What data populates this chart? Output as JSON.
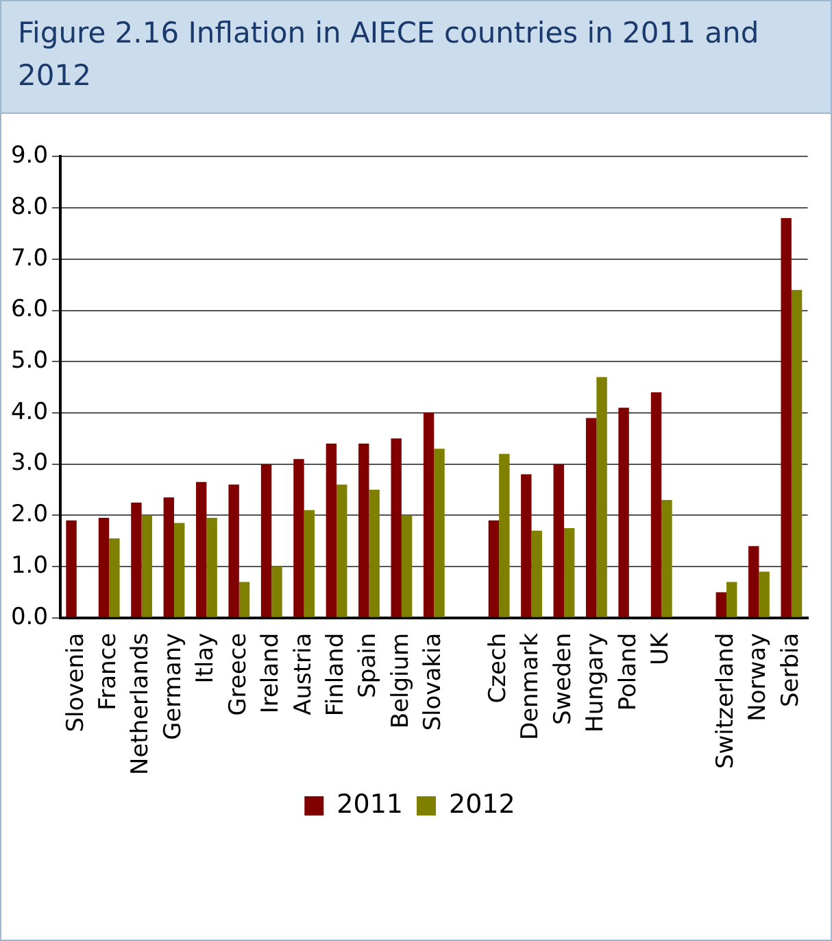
{
  "chart_data": {
    "type": "bar",
    "title": "Figure 2.16 Inflation in AIECE countries in 2011 and 2012",
    "categories": [
      "Slovenia",
      "France",
      "Netherlands",
      "Germany",
      "Itlay",
      "Greece",
      "Ireland",
      "Austria",
      "Finland",
      "Spain",
      "Belgium",
      "Slovakia",
      null,
      "Czech",
      "Denmark",
      "Sweden",
      "Hungary",
      "Poland",
      "UK",
      null,
      "Switzerland",
      "Norway",
      "Serbia"
    ],
    "series": [
      {
        "name": "2011",
        "color": "#800000",
        "values": [
          1.9,
          1.95,
          2.25,
          2.35,
          2.65,
          2.6,
          3.0,
          3.1,
          3.4,
          3.4,
          3.5,
          4.0,
          null,
          1.9,
          2.8,
          3.0,
          3.9,
          4.1,
          4.4,
          null,
          0.5,
          1.4,
          7.8
        ]
      },
      {
        "name": "2012",
        "color": "#808000",
        "values": [
          null,
          1.55,
          2.0,
          1.85,
          1.95,
          0.7,
          1.0,
          2.1,
          2.6,
          2.5,
          2.0,
          3.3,
          null,
          3.2,
          1.7,
          1.75,
          4.7,
          null,
          2.3,
          null,
          0.7,
          0.9,
          6.4
        ]
      }
    ],
    "ylim": [
      0,
      9
    ],
    "yticks": [
      {
        "value": 0,
        "label": "0.0"
      },
      {
        "value": 1,
        "label": "1.0"
      },
      {
        "value": 2,
        "label": "2.0"
      },
      {
        "value": 3,
        "label": "3.0"
      },
      {
        "value": 4,
        "label": "4.0"
      },
      {
        "value": 5,
        "label": "5.0"
      },
      {
        "value": 6,
        "label": "6.0"
      },
      {
        "value": 7,
        "label": "7.0"
      },
      {
        "value": 8,
        "label": "8.0"
      },
      {
        "value": 9,
        "label": "9.0"
      }
    ],
    "grid": "y",
    "legend": "bottom"
  }
}
